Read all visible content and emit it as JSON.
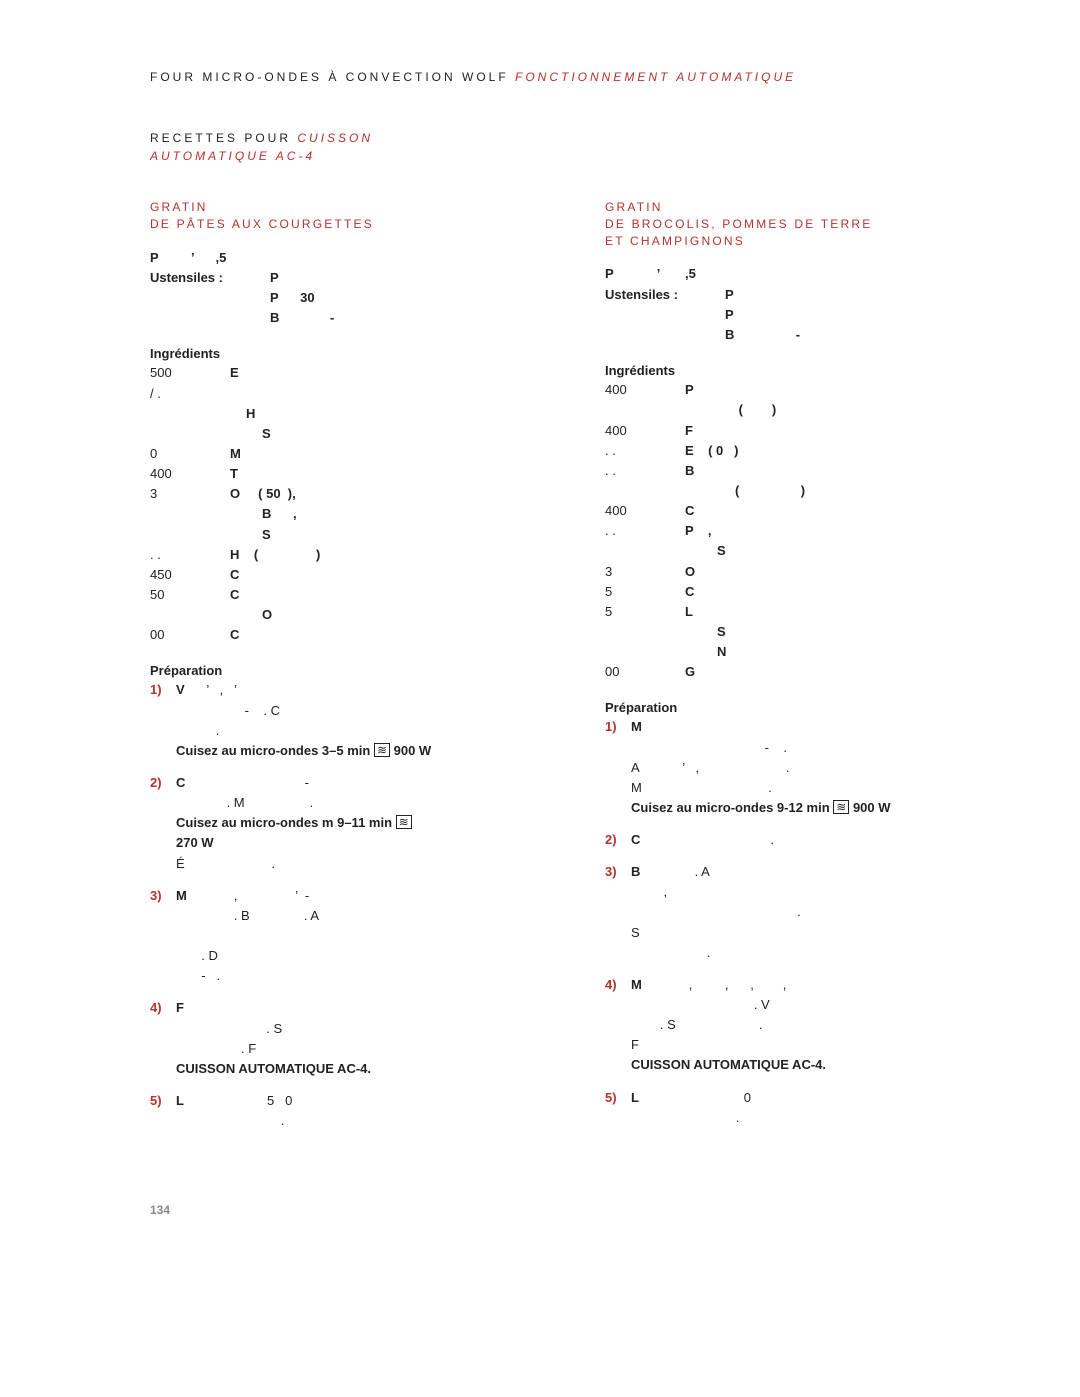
{
  "header": {
    "black": "FOUR MICRO-ONDES À CONVECTION WOLF ",
    "red_italic": "FONCTIONNEMENT AUTOMATIQUE"
  },
  "preTitle": {
    "black": "RECETTES POUR ",
    "red_italic_line1": "CUISSON",
    "red_italic_line2": "AUTOMATIQUE AC-4"
  },
  "pageNumber": "134",
  "icons": {
    "microwave": "≋"
  },
  "left": {
    "title_l1": "GRATIN",
    "title_l2": "DE PÂTES AUX COURGETTES",
    "poidsLine": "P         ’      ,5",
    "ustensilesLabel": "Ustensiles :",
    "ust": [
      "P",
      "P      30",
      "B              -"
    ],
    "ingLabel": "Ingrédients",
    "ing": [
      {
        "q": "500",
        "n": "E"
      },
      {
        "q": "/ .",
        "n": ""
      },
      {
        "q": "",
        "n": "H",
        "pad": 1
      },
      {
        "q": "",
        "n": "S",
        "pad": 2
      },
      {
        "q": "0",
        "n": "M"
      },
      {
        "q": "400",
        "n": "T"
      },
      {
        "q": "3",
        "n": "O     ( 50  ),"
      },
      {
        "q": "",
        "n": "B      ,",
        "pad": 2
      },
      {
        "q": "",
        "n": "S",
        "pad": 2
      },
      {
        "q": " .  .",
        "n": "H    (                )"
      },
      {
        "q": "450",
        "n": "C"
      },
      {
        "q": "50",
        "n": "C"
      },
      {
        "q": "",
        "n": "O",
        "pad": 2
      },
      {
        "q": " 00",
        "n": "C"
      }
    ],
    "prepLabel": "Préparation",
    "steps": [
      {
        "num": "1)",
        "lead": "V",
        "body": "      ’   ,   ’\n                   -    . C\n           .",
        "hl": "Cuisez au micro-ondes 3–5 min",
        "wave": true,
        "wtail": "900 W"
      },
      {
        "num": "2)",
        "lead": "C",
        "body": "                                 -\n              . M                  .",
        "hl": "Cuisez au micro-ondes m 9–11 min",
        "wave": true,
        "wtail": "",
        "hl2": "270 W",
        "tail": "É                        ."
      },
      {
        "num": "3)",
        "lead": "M",
        "body": "             ,                ’  -\n                . B               . A\n\n       . D\n       -   .",
        "hl": ""
      },
      {
        "num": "4)",
        "lead": "F",
        "body": "\n                         . S\n                  . F",
        "hl": "CUISSON AUTOMATIQUE AC-4."
      },
      {
        "num": "5)",
        "lead": "L",
        "body": "                       5   0\n                             .",
        "hl": ""
      }
    ]
  },
  "right": {
    "title_l1": "GRATIN",
    "title_l2": "DE BROCOLIS, POMMES DE TERRE",
    "title_l3": "ET CHAMPIGNONS",
    "poidsLine": "P            ’       ,5",
    "ustensilesLabel": "Ustensiles :",
    "ust": [
      "P",
      "P",
      "B                 -"
    ],
    "ingLabel": "Ingrédients",
    "ing": [
      {
        "q": "400",
        "n": "P"
      },
      {
        "q": "",
        "n": "      (        )",
        "pad": 2
      },
      {
        "q": "400",
        "n": "F"
      },
      {
        "q": "  .  .",
        "n": "E    ( 0   )"
      },
      {
        "q": "  .  .",
        "n": "B"
      },
      {
        "q": "",
        "n": "     (                 )",
        "pad": 2
      },
      {
        "q": "400",
        "n": "C"
      },
      {
        "q": "  .  .",
        "n": "P    ,"
      },
      {
        "q": "",
        "n": "S",
        "pad": 2
      },
      {
        "q": "3",
        "n": "O"
      },
      {
        "q": " 5",
        "n": "C"
      },
      {
        "q": " 5",
        "n": "L"
      },
      {
        "q": "",
        "n": "S",
        "pad": 2
      },
      {
        "q": "",
        "n": "N",
        "pad": 2
      },
      {
        "q": " 00",
        "n": "G"
      }
    ],
    "prepLabel": "Préparation",
    "steps": [
      {
        "num": "1)",
        "lead": "M",
        "body": "\n                                     -    .\nA            ’   ,                        .\nM                                   .",
        "hl": "Cuisez au micro-ondes 9-12 min",
        "wave": true,
        "wtail": "900 W"
      },
      {
        "num": "2)",
        "lead": "C",
        "body": "                                    .",
        "hl": ""
      },
      {
        "num": "3)",
        "lead": "B",
        "body": "               . A\n         ,\n                                              .\nS\n                     .",
        "hl": ""
      },
      {
        "num": "4)",
        "lead": "M",
        "body": "             ,         ,      ,        ,\n                                  . V\n        . S                       .\nF",
        "hl": "CUISSON AUTOMATIQUE AC-4."
      },
      {
        "num": "5)",
        "lead": "L",
        "body": "                             0\n                             .",
        "hl": ""
      }
    ]
  }
}
